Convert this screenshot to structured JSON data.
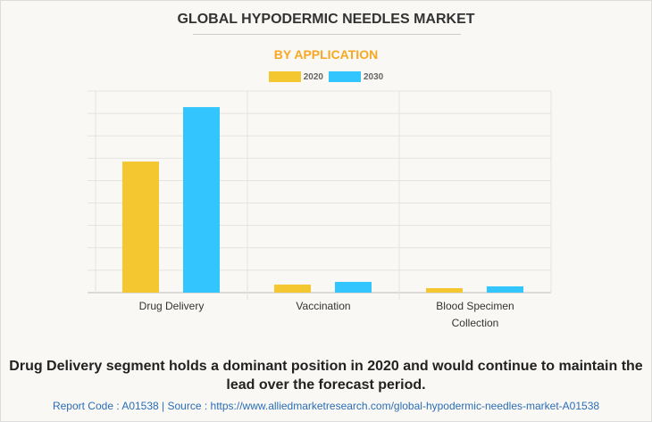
{
  "chart_data": {
    "type": "bar",
    "title": "GLOBAL HYPODERMIC NEEDLES MARKET",
    "subtitle": "BY APPLICATION",
    "categories": [
      "Drug Delivery",
      "Vaccination",
      "Blood Specimen Collection"
    ],
    "category_lines": [
      [
        "Drug Delivery"
      ],
      [
        "Vaccination"
      ],
      [
        "Blood Specimen",
        "Collection"
      ]
    ],
    "series": [
      {
        "name": "2020",
        "color": "#f4c630",
        "values": [
          5.85,
          0.36,
          0.2
        ]
      },
      {
        "name": "2030",
        "color": "#33c5fd",
        "values": [
          8.28,
          0.48,
          0.28
        ]
      }
    ],
    "ylim": [
      0,
      9
    ],
    "grid": true,
    "legend": "top-center",
    "xlabel": "",
    "ylabel": ""
  },
  "note": "Drug Delivery segment holds a dominant position in 2020 and would continue to maintain the lead over the forecast period.",
  "footer": "Report Code : A01538  |  Source : https://www.alliedmarketresearch.com/global-hypodermic-needles-market-A01538"
}
